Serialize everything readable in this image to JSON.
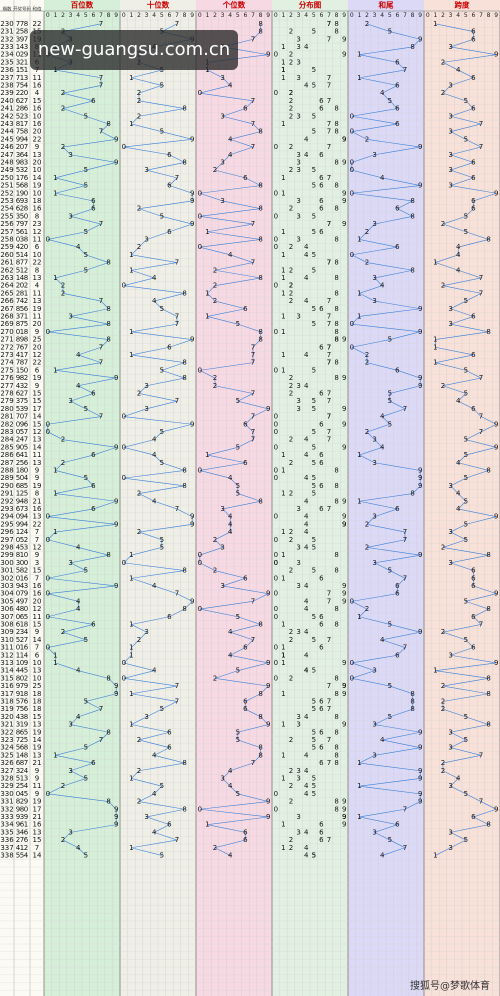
{
  "chart_data": {
    "type": "trend",
    "column_headers": [
      "期数",
      "开奖号码",
      "和值"
    ],
    "sections": [
      "百位数",
      "十位数",
      "个位数",
      "分布图",
      "和尾",
      "跨度"
    ],
    "digit_labels": [
      0,
      1,
      2,
      3,
      4,
      5,
      6,
      7,
      8,
      9
    ],
    "line_color": "#3a7fd8",
    "section_colors": [
      "#d6efd9",
      "#efefe7",
      "#f7d9e4",
      "#e2f0e2",
      "#dcd9f7",
      "#f8e1d9"
    ],
    "overlay": "new-guangsu.com.cn",
    "watermark": "搜狐号@梦歌体育",
    "rows": [
      [
        230,
        7,
        7,
        8,
        22,
        2,
        1
      ],
      [
        231,
        2,
        5,
        8,
        15,
        5,
        6
      ],
      [
        232,
        3,
        9,
        7,
        19,
        9,
        6
      ],
      [
        233,
        1,
        4,
        3,
        8,
        8,
        3
      ],
      [
        234,
        0,
        2,
        9,
        11,
        1,
        9
      ],
      [
        235,
        3,
        2,
        1,
        6,
        6,
        2
      ],
      [
        236,
        1,
        5,
        1,
        7,
        7,
        4
      ],
      [
        237,
        7,
        1,
        3,
        11,
        1,
        6
      ],
      [
        238,
        7,
        5,
        4,
        16,
        6,
        3
      ],
      [
        239,
        2,
        2,
        0,
        4,
        4,
        2
      ],
      [
        240,
        6,
        2,
        7,
        15,
        5,
        5
      ],
      [
        241,
        2,
        8,
        6,
        16,
        6,
        6
      ],
      [
        242,
        5,
        2,
        3,
        10,
        0,
        3
      ],
      [
        243,
        8,
        1,
        7,
        16,
        6,
        7
      ],
      [
        244,
        7,
        5,
        8,
        20,
        0,
        3
      ],
      [
        245,
        9,
        9,
        4,
        22,
        2,
        5
      ],
      [
        246,
        2,
        0,
        7,
        9,
        9,
        7
      ],
      [
        247,
        3,
        6,
        4,
        13,
        3,
        3
      ],
      [
        248,
        9,
        8,
        3,
        20,
        0,
        6
      ],
      [
        249,
        5,
        3,
        2,
        10,
        0,
        3
      ],
      [
        250,
        1,
        7,
        6,
        14,
        4,
        6
      ],
      [
        251,
        5,
        6,
        8,
        19,
        9,
        3
      ],
      [
        252,
        1,
        9,
        0,
        10,
        0,
        9
      ],
      [
        253,
        6,
        9,
        3,
        18,
        8,
        6
      ],
      [
        254,
        6,
        2,
        8,
        16,
        6,
        6
      ],
      [
        255,
        3,
        5,
        0,
        8,
        8,
        5
      ],
      [
        256,
        7,
        9,
        7,
        23,
        3,
        2
      ],
      [
        257,
        5,
        6,
        1,
        12,
        2,
        5
      ],
      [
        258,
        0,
        3,
        8,
        11,
        1,
        8
      ],
      [
        259,
        4,
        2,
        0,
        6,
        6,
        4
      ],
      [
        260,
        5,
        1,
        4,
        10,
        0,
        4
      ],
      [
        261,
        8,
        7,
        7,
        22,
        2,
        1
      ],
      [
        262,
        5,
        1,
        2,
        8,
        8,
        4
      ],
      [
        263,
        1,
        4,
        8,
        13,
        3,
        7
      ],
      [
        264,
        2,
        0,
        2,
        4,
        4,
        2
      ],
      [
        265,
        2,
        8,
        1,
        11,
        1,
        7
      ],
      [
        266,
        7,
        4,
        2,
        13,
        3,
        5
      ],
      [
        267,
        8,
        5,
        6,
        19,
        9,
        3
      ],
      [
        268,
        3,
        7,
        1,
        11,
        1,
        6
      ],
      [
        269,
        8,
        7,
        5,
        20,
        0,
        3
      ],
      [
        270,
        0,
        1,
        8,
        9,
        9,
        8
      ],
      [
        271,
        8,
        9,
        8,
        25,
        5,
        1
      ],
      [
        272,
        7,
        6,
        7,
        20,
        0,
        1
      ],
      [
        273,
        4,
        1,
        7,
        12,
        2,
        6
      ],
      [
        274,
        7,
        8,
        7,
        22,
        2,
        1
      ],
      [
        275,
        1,
        5,
        0,
        6,
        6,
        5
      ],
      [
        276,
        9,
        8,
        2,
        19,
        9,
        7
      ],
      [
        277,
        4,
        3,
        2,
        9,
        9,
        2
      ],
      [
        278,
        6,
        2,
        7,
        15,
        5,
        5
      ],
      [
        279,
        3,
        7,
        5,
        15,
        5,
        4
      ],
      [
        280,
        5,
        3,
        9,
        17,
        7,
        6
      ],
      [
        281,
        7,
        0,
        7,
        14,
        4,
        7
      ],
      [
        282,
        0,
        9,
        6,
        15,
        5,
        9
      ],
      [
        283,
        0,
        5,
        7,
        12,
        2,
        7
      ],
      [
        284,
        2,
        4,
        7,
        13,
        3,
        5
      ],
      [
        285,
        9,
        0,
        5,
        14,
        4,
        9
      ],
      [
        286,
        6,
        4,
        1,
        11,
        1,
        5
      ],
      [
        287,
        2,
        5,
        6,
        13,
        3,
        4
      ],
      [
        288,
        1,
        8,
        0,
        9,
        9,
        8
      ],
      [
        289,
        5,
        0,
        4,
        9,
        9,
        5
      ],
      [
        290,
        6,
        8,
        5,
        19,
        9,
        3
      ],
      [
        291,
        1,
        2,
        5,
        8,
        8,
        4
      ],
      [
        292,
        9,
        4,
        8,
        21,
        1,
        5
      ],
      [
        293,
        6,
        7,
        3,
        16,
        6,
        4
      ],
      [
        294,
        0,
        9,
        4,
        13,
        3,
        9
      ],
      [
        295,
        9,
        9,
        4,
        22,
        2,
        5
      ],
      [
        296,
        1,
        2,
        4,
        7,
        7,
        3
      ],
      [
        297,
        0,
        5,
        2,
        7,
        7,
        5
      ],
      [
        298,
        4,
        5,
        3,
        12,
        2,
        2
      ],
      [
        299,
        8,
        1,
        0,
        9,
        9,
        8
      ],
      [
        300,
        3,
        0,
        0,
        3,
        3,
        3
      ],
      [
        301,
        5,
        8,
        2,
        15,
        5,
        6
      ],
      [
        302,
        0,
        1,
        6,
        7,
        7,
        6
      ],
      [
        303,
        9,
        4,
        3,
        16,
        6,
        6
      ],
      [
        304,
        0,
        7,
        9,
        16,
        6,
        9
      ],
      [
        305,
        4,
        9,
        7,
        20,
        0,
        5
      ],
      [
        306,
        4,
        8,
        0,
        12,
        2,
        8
      ],
      [
        307,
        0,
        6,
        5,
        11,
        1,
        6
      ],
      [
        308,
        6,
        1,
        8,
        15,
        5,
        7
      ],
      [
        309,
        2,
        3,
        4,
        9,
        9,
        2
      ],
      [
        310,
        5,
        2,
        7,
        14,
        4,
        5
      ],
      [
        311,
        0,
        1,
        6,
        7,
        7,
        6
      ],
      [
        312,
        1,
        1,
        4,
        6,
        6,
        3
      ],
      [
        313,
        1,
        0,
        9,
        10,
        0,
        9
      ],
      [
        314,
        4,
        4,
        5,
        13,
        3,
        1
      ],
      [
        315,
        8,
        0,
        2,
        10,
        0,
        8
      ],
      [
        316,
        9,
        7,
        9,
        25,
        5,
        2
      ],
      [
        317,
        9,
        1,
        8,
        18,
        8,
        8
      ],
      [
        318,
        5,
        7,
        6,
        18,
        8,
        2
      ],
      [
        319,
        7,
        5,
        6,
        18,
        8,
        2
      ],
      [
        320,
        4,
        3,
        8,
        15,
        5,
        5
      ],
      [
        321,
        3,
        1,
        9,
        13,
        3,
        8
      ],
      [
        322,
        8,
        6,
        5,
        19,
        9,
        3
      ],
      [
        323,
        7,
        2,
        5,
        14,
        4,
        5
      ],
      [
        324,
        5,
        6,
        8,
        19,
        9,
        3
      ],
      [
        325,
        1,
        4,
        8,
        13,
        3,
        7
      ],
      [
        326,
        6,
        8,
        7,
        21,
        1,
        2
      ],
      [
        327,
        3,
        2,
        4,
        9,
        9,
        2
      ],
      [
        328,
        5,
        1,
        3,
        9,
        9,
        4
      ],
      [
        329,
        2,
        5,
        4,
        11,
        1,
        3
      ],
      [
        330,
        0,
        4,
        5,
        9,
        9,
        5
      ],
      [
        331,
        8,
        2,
        9,
        19,
        9,
        7
      ],
      [
        332,
        9,
        8,
        0,
        17,
        7,
        9
      ],
      [
        333,
        9,
        3,
        9,
        21,
        1,
        6
      ],
      [
        334,
        9,
        6,
        1,
        16,
        6,
        8
      ],
      [
        335,
        3,
        4,
        6,
        13,
        3,
        3
      ],
      [
        336,
        2,
        7,
        6,
        15,
        5,
        5
      ],
      [
        337,
        4,
        1,
        2,
        7,
        7,
        3
      ],
      [
        338,
        5,
        5,
        4,
        14,
        4,
        1
      ]
    ]
  }
}
